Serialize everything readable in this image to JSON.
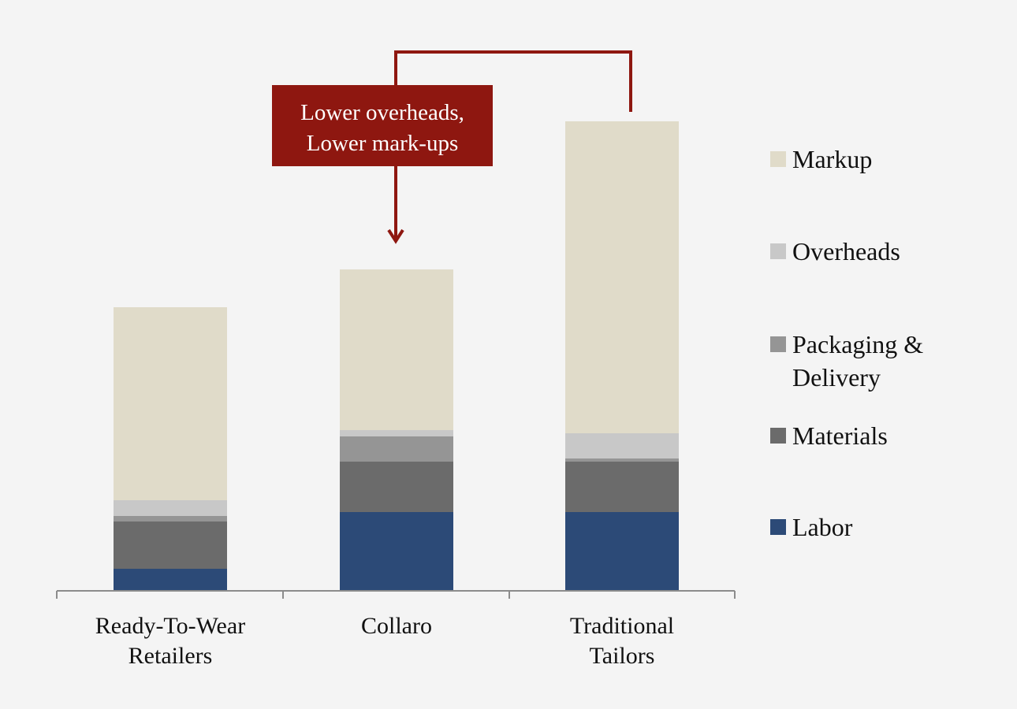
{
  "chart_data": {
    "type": "bar",
    "stacked": true,
    "categories": [
      [
        "Ready-To-Wear",
        "Retailers"
      ],
      [
        "Collaro"
      ],
      [
        "Traditional",
        "Tailors"
      ]
    ],
    "series": [
      {
        "name": "Labor",
        "color": "#2c4a77",
        "values": [
          28,
          100,
          100
        ]
      },
      {
        "name": "Materials",
        "color": "#6b6b6b",
        "values": [
          60,
          64,
          64
        ]
      },
      {
        "name": "Packaging & Delivery",
        "color": "#959595",
        "values": [
          7,
          32,
          4
        ]
      },
      {
        "name": "Overheads",
        "color": "#c8c8c8",
        "values": [
          20,
          8,
          32
        ]
      },
      {
        "name": "Markup",
        "color": "#e0dbc9",
        "values": [
          245,
          204,
          396
        ]
      }
    ],
    "ylim": [
      0,
      600
    ],
    "grid": false,
    "legend": "right",
    "annotation": {
      "lines": [
        "Lower overheads,",
        "Lower mark-ups"
      ],
      "color": "#8e1710"
    }
  }
}
